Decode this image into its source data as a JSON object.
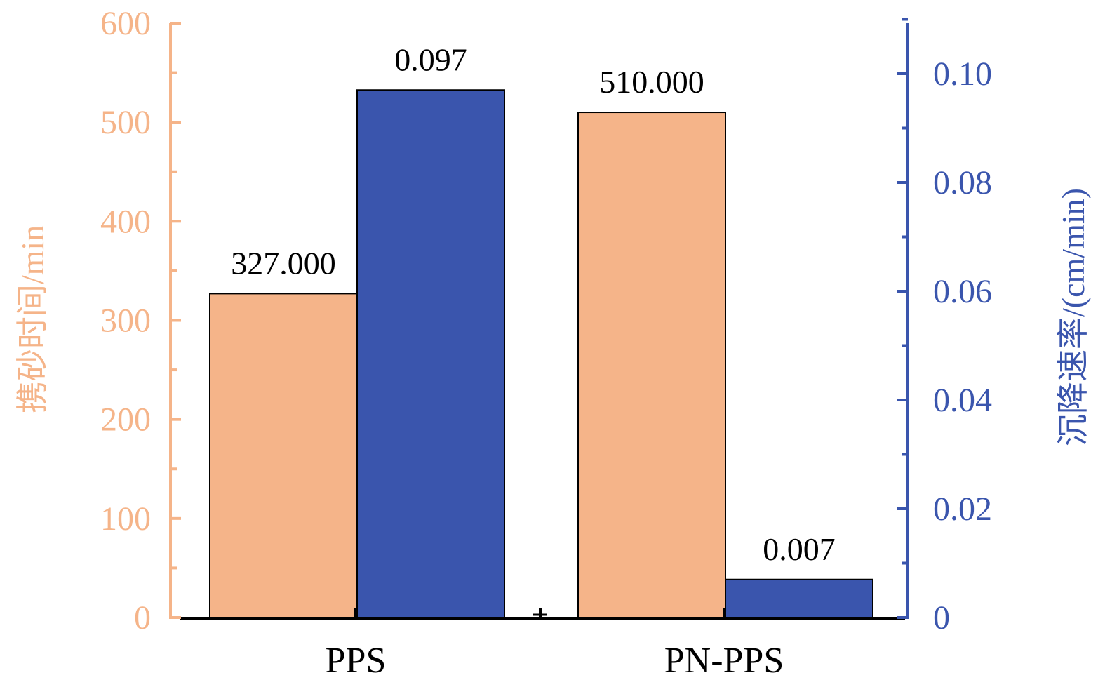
{
  "colors": {
    "left_axis": "#F5B489",
    "right_axis": "#3A55AD",
    "bar_left": "#F5B489",
    "bar_right": "#3A55AD",
    "label_text": "#000000",
    "bar_stroke": "#000000"
  },
  "chart_data": {
    "type": "bar",
    "title": "",
    "categories": [
      "PPS",
      "PN-PPS"
    ],
    "series": [
      {
        "axis": "left",
        "values": [
          327.0,
          510.0
        ],
        "value_labels": [
          "327.000",
          "510.000"
        ]
      },
      {
        "axis": "right",
        "values": [
          0.097,
          0.007
        ],
        "value_labels": [
          "0.097",
          "0.007"
        ]
      }
    ],
    "left_axis": {
      "label": "携砂时间/min",
      "ylim": [
        0,
        600
      ],
      "ticks": [
        0,
        100,
        200,
        300,
        400,
        500,
        600
      ],
      "tick_labels": [
        "0",
        "100",
        "200",
        "300",
        "400",
        "500",
        "600"
      ]
    },
    "right_axis": {
      "label": "沉降速率/(cm/min)",
      "ylim": [
        0,
        0.11
      ],
      "ticks": [
        0,
        0.02,
        0.04,
        0.06,
        0.08,
        0.1
      ],
      "tick_labels": [
        "0",
        "0.02",
        "0.04",
        "0.06",
        "0.08",
        "0.10"
      ]
    },
    "grid": false,
    "legend": "none"
  }
}
